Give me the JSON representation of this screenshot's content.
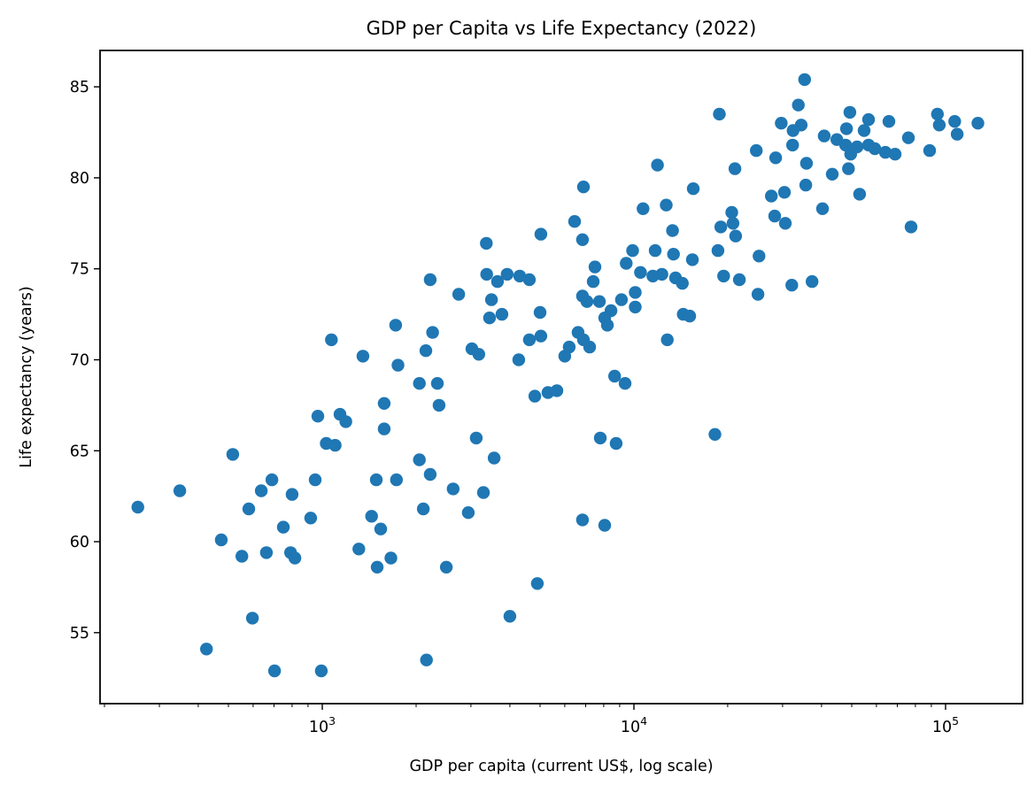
{
  "chart_data": {
    "type": "scatter",
    "title": "GDP per Capita vs Life Expectancy (2022)",
    "xlabel": "GDP per capita (current US$, log scale)",
    "ylabel": "Life expectancy (years)",
    "x_scale": "log",
    "y_scale": "linear",
    "xlim": [
      193.6,
      176700
    ],
    "ylim": [
      51.1,
      87.0
    ],
    "grid": false,
    "legend": "none",
    "marker_color": "#1f77b4",
    "marker_radius_px": 7.2,
    "x_ticks": [
      {
        "value": 1000,
        "base": "10",
        "exp": "3"
      },
      {
        "value": 10000,
        "base": "10",
        "exp": "4"
      },
      {
        "value": 100000,
        "base": "10",
        "exp": "5"
      }
    ],
    "x_minor_mantissas": [
      2,
      3,
      4,
      5,
      6,
      7,
      8,
      9
    ],
    "y_ticks": [
      55,
      60,
      65,
      70,
      75,
      80,
      85
    ],
    "points": [
      [
        18800,
        83.5
      ],
      [
        11900,
        80.7
      ],
      [
        6890,
        79.5
      ],
      [
        15500,
        79.4
      ],
      [
        10700,
        78.3
      ],
      [
        12700,
        78.5
      ],
      [
        6450,
        77.6
      ],
      [
        5030,
        76.9
      ],
      [
        6840,
        76.6
      ],
      [
        3360,
        76.4
      ],
      [
        13300,
        77.1
      ],
      [
        9900,
        76.0
      ],
      [
        11700,
        76.0
      ],
      [
        13400,
        75.8
      ],
      [
        18600,
        76.0
      ],
      [
        9450,
        75.3
      ],
      [
        15400,
        75.5
      ],
      [
        7500,
        75.1
      ],
      [
        11500,
        74.6
      ],
      [
        12300,
        74.7
      ],
      [
        3920,
        74.7
      ],
      [
        3370,
        74.7
      ],
      [
        35300,
        85.4
      ],
      [
        33700,
        84.0
      ],
      [
        49300,
        83.6
      ],
      [
        29700,
        83.0
      ],
      [
        34400,
        82.9
      ],
      [
        56600,
        83.2
      ],
      [
        65800,
        83.1
      ],
      [
        94200,
        83.5
      ],
      [
        95500,
        82.9
      ],
      [
        107000,
        83.1
      ],
      [
        127000,
        83.0
      ],
      [
        109000,
        82.4
      ],
      [
        48100,
        82.7
      ],
      [
        54800,
        82.6
      ],
      [
        32400,
        82.6
      ],
      [
        40800,
        82.3
      ],
      [
        44800,
        82.1
      ],
      [
        47800,
        81.8
      ],
      [
        76000,
        82.2
      ],
      [
        24700,
        81.5
      ],
      [
        28500,
        81.1
      ],
      [
        32300,
        81.8
      ],
      [
        35800,
        80.8
      ],
      [
        49600,
        81.3
      ],
      [
        52000,
        81.7
      ],
      [
        56600,
        81.8
      ],
      [
        59300,
        81.6
      ],
      [
        64100,
        81.4
      ],
      [
        68900,
        81.3
      ],
      [
        88900,
        81.5
      ],
      [
        21100,
        80.5
      ],
      [
        43300,
        80.2
      ],
      [
        48800,
        80.5
      ],
      [
        35600,
        79.6
      ],
      [
        53000,
        79.1
      ],
      [
        27600,
        79.0
      ],
      [
        30400,
        79.2
      ],
      [
        28300,
        77.9
      ],
      [
        30600,
        77.5
      ],
      [
        40300,
        78.3
      ],
      [
        20600,
        78.1
      ],
      [
        20800,
        77.5
      ],
      [
        19000,
        77.3
      ],
      [
        21200,
        76.8
      ],
      [
        25200,
        75.7
      ],
      [
        77500,
        77.3
      ],
      [
        19400,
        74.6
      ],
      [
        21800,
        74.4
      ],
      [
        25000,
        73.6
      ],
      [
        32100,
        74.1
      ],
      [
        37300,
        74.3
      ],
      [
        18200,
        65.9
      ],
      [
        1070,
        71.1
      ],
      [
        1350,
        70.2
      ],
      [
        1720,
        71.9
      ],
      [
        1750,
        69.7
      ],
      [
        1580,
        67.6
      ],
      [
        968,
        66.9
      ],
      [
        1140,
        67.0
      ],
      [
        1190,
        66.6
      ],
      [
        1580,
        66.2
      ],
      [
        1030,
        65.4
      ],
      [
        1100,
        65.3
      ],
      [
        516,
        64.8
      ],
      [
        689,
        63.4
      ],
      [
        637,
        62.8
      ],
      [
        949,
        63.4
      ],
      [
        1490,
        63.4
      ],
      [
        1730,
        63.4
      ],
      [
        349,
        62.8
      ],
      [
        3650,
        74.3
      ],
      [
        4300,
        74.6
      ],
      [
        4620,
        74.4
      ],
      [
        3490,
        73.3
      ],
      [
        3770,
        72.5
      ],
      [
        3440,
        72.3
      ],
      [
        5000,
        72.6
      ],
      [
        2740,
        73.6
      ],
      [
        7400,
        74.3
      ],
      [
        10500,
        74.8
      ],
      [
        10100,
        72.9
      ],
      [
        6840,
        73.5
      ],
      [
        7070,
        73.2
      ],
      [
        7750,
        73.2
      ],
      [
        8440,
        72.7
      ],
      [
        9120,
        73.3
      ],
      [
        14400,
        72.5
      ],
      [
        8060,
        72.3
      ],
      [
        10100,
        73.7
      ],
      [
        2220,
        74.4
      ],
      [
        2260,
        71.5
      ],
      [
        2150,
        70.5
      ],
      [
        3020,
        70.6
      ],
      [
        3180,
        70.3
      ],
      [
        4620,
        71.1
      ],
      [
        5030,
        71.3
      ],
      [
        4270,
        70.0
      ],
      [
        13600,
        74.5
      ],
      [
        14300,
        74.2
      ],
      [
        12800,
        71.1
      ],
      [
        15100,
        72.4
      ],
      [
        8220,
        71.9
      ],
      [
        6620,
        71.5
      ],
      [
        6890,
        71.1
      ],
      [
        6200,
        70.7
      ],
      [
        6000,
        70.2
      ],
      [
        7210,
        70.7
      ],
      [
        8670,
        69.1
      ],
      [
        9370,
        68.7
      ],
      [
        4810,
        68.0
      ],
      [
        5300,
        68.2
      ],
      [
        5660,
        68.3
      ],
      [
        2050,
        68.7
      ],
      [
        2340,
        68.7
      ],
      [
        2370,
        67.5
      ],
      [
        3120,
        65.7
      ],
      [
        3560,
        64.6
      ],
      [
        2050,
        64.5
      ],
      [
        2220,
        63.7
      ],
      [
        2630,
        62.9
      ],
      [
        3290,
        62.7
      ],
      [
        7800,
        65.7
      ],
      [
        8770,
        65.4
      ],
      [
        256,
        61.9
      ],
      [
        581,
        61.8
      ],
      [
        750,
        60.8
      ],
      [
        800,
        62.6
      ],
      [
        918,
        61.3
      ],
      [
        474,
        60.1
      ],
      [
        552,
        59.2
      ],
      [
        662,
        59.4
      ],
      [
        791,
        59.4
      ],
      [
        817,
        59.1
      ],
      [
        1310,
        59.6
      ],
      [
        1440,
        61.4
      ],
      [
        1540,
        60.7
      ],
      [
        1500,
        58.6
      ],
      [
        1660,
        59.1
      ],
      [
        597,
        55.8
      ],
      [
        425,
        54.1
      ],
      [
        703,
        52.9
      ],
      [
        993,
        52.9
      ],
      [
        2110,
        61.8
      ],
      [
        2940,
        61.6
      ],
      [
        6840,
        61.2
      ],
      [
        8060,
        60.9
      ],
      [
        2500,
        58.6
      ],
      [
        4900,
        57.7
      ],
      [
        4000,
        55.9
      ],
      [
        2160,
        53.5
      ]
    ]
  }
}
